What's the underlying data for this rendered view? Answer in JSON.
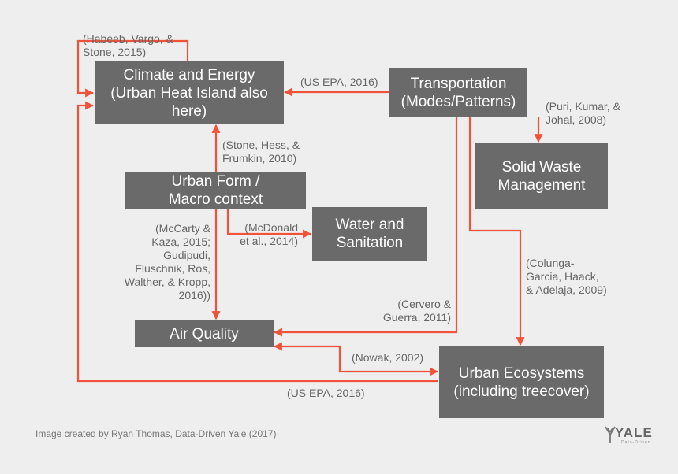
{
  "nodes": {
    "climate": "Climate and Energy\n(Urban Heat Island also\nhere)",
    "transportation": "Transportation\n(Modes/Patterns)",
    "solid_waste": "Solid Waste\nManagement",
    "urban_form": "Urban Form /\nMacro context",
    "water": "Water and\nSanitation",
    "air_quality": "Air Quality",
    "ecosystems": "Urban Ecosystems\n(including treecover)"
  },
  "citations": {
    "habeeb": "(Habeeb, Vargo, &\nStone, 2015)",
    "us_epa_top": "(US EPA, 2016)",
    "puri": "(Puri, Kumar, &\nJohal, 2008)",
    "stone": "(Stone, Hess, &\nFrumkin, 2010)",
    "mccarty": "(McCarty &\nKaza, 2015;\nGudipudi,\nFluschnik, Ros,\nWalther, & Kropp,\n2016))",
    "mcdonald": "(McDonald\net al., 2014)",
    "colunga": "(Colunga-\nGarcia, Haack,\n& Adelaja, 2009)",
    "cervero": "(Cervero &\nGuerra, 2011)",
    "nowak": "(Nowak, 2002)",
    "us_epa_bottom": "(US EPA, 2016)"
  },
  "footer": "Image created by Ryan Thomas, Data-Driven Yale (2017)",
  "logo": {
    "text": "YALE",
    "sub": "Data-Driven"
  },
  "colors": {
    "box": "#6a6a6a",
    "arrow": "#f0523a",
    "text": "#666666",
    "background": "#eeeeee"
  }
}
